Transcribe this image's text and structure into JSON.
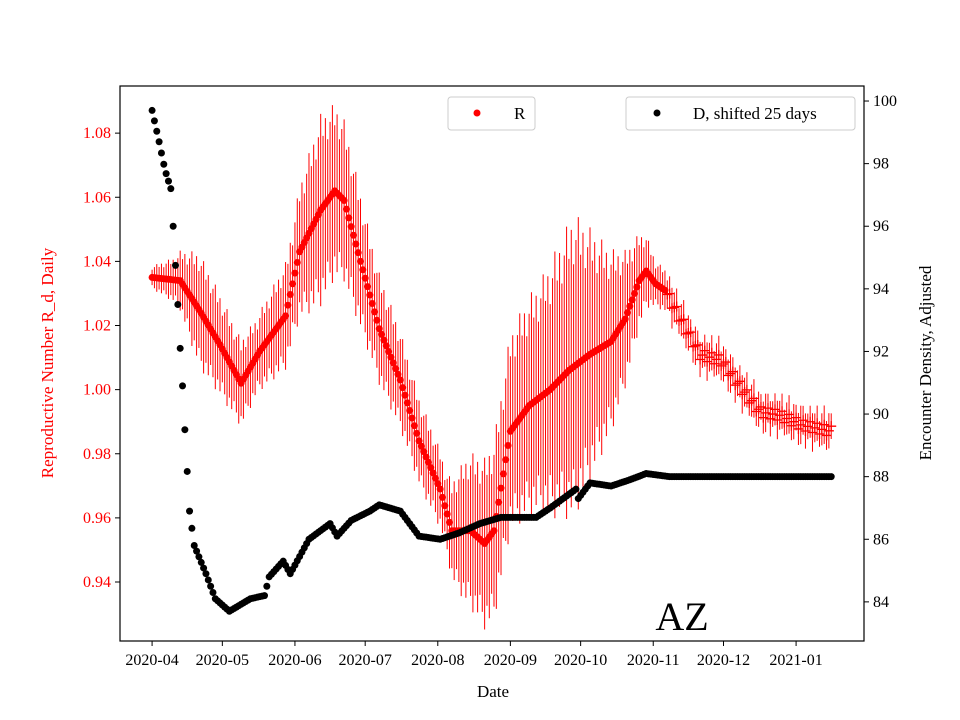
{
  "chart_data": {
    "type": "scatter",
    "title": "",
    "annotation": "AZ",
    "xlabel": "Date",
    "ylabel_left": "Reproductive Number R_d, Daily",
    "ylabel_right": "Encounter Density, Adjusted",
    "x_start_date": "2020-04-01",
    "xlim_days": [
      -13.7,
      304
    ],
    "ylim_left": [
      0.9216,
      1.0947
    ],
    "ylim_right": [
      82.75,
      100.48
    ],
    "x_ticks": [
      {
        "label": "2020-04",
        "day": 0
      },
      {
        "label": "2020-05",
        "day": 30
      },
      {
        "label": "2020-06",
        "day": 61
      },
      {
        "label": "2020-07",
        "day": 91
      },
      {
        "label": "2020-08",
        "day": 122
      },
      {
        "label": "2020-09",
        "day": 153
      },
      {
        "label": "2020-10",
        "day": 183
      },
      {
        "label": "2020-11",
        "day": 214
      },
      {
        "label": "2020-12",
        "day": 244
      },
      {
        "label": "2021-01",
        "day": 275
      }
    ],
    "y_ticks_left": [
      "0.94",
      "0.96",
      "0.98",
      "1.00",
      "1.02",
      "1.04",
      "1.06",
      "1.08"
    ],
    "y_ticks_right": [
      "84",
      "86",
      "88",
      "90",
      "92",
      "94",
      "96",
      "98",
      "100"
    ],
    "colors": {
      "R": "#ff0000",
      "D": "#000000"
    },
    "legend": [
      {
        "label": "R",
        "placement": "top-center"
      },
      {
        "label": "D, shifted 25 days",
        "placement": "top-right"
      }
    ],
    "series": [
      {
        "name": "R",
        "axis": "left",
        "marker_dot_until_day": 219,
        "marker_after": "plus",
        "days": [
          0,
          12,
          20,
          29,
          38,
          46,
          57,
          63,
          72,
          78,
          82,
          89,
          97,
          106,
          114,
          123,
          128,
          136,
          142,
          146,
          153,
          161,
          170,
          178,
          187,
          196,
          202,
          208,
          211,
          215,
          219,
          225,
          234,
          243,
          251,
          260,
          268,
          277,
          290
        ],
        "values": [
          1.035,
          1.034,
          1.025,
          1.014,
          1.002,
          1.012,
          1.023,
          1.043,
          1.056,
          1.062,
          1.059,
          1.04,
          1.019,
          1.003,
          0.984,
          0.969,
          0.956,
          0.956,
          0.952,
          0.956,
          0.987,
          0.995,
          1.0,
          1.006,
          1.011,
          1.015,
          1.022,
          1.034,
          1.037,
          1.033,
          1.031,
          1.023,
          1.011,
          1.009,
          1.001,
          0.993,
          0.992,
          0.989,
          0.987
        ],
        "err_days": [
          0,
          10,
          20,
          35,
          45,
          60,
          72,
          80,
          95,
          110,
          125,
          135,
          150,
          165,
          180,
          195,
          205,
          215,
          225,
          300
        ],
        "err_values": [
          0.003,
          0.006,
          0.015,
          0.012,
          0.01,
          0.015,
          0.025,
          0.022,
          0.015,
          0.012,
          0.01,
          0.02,
          0.025,
          0.03,
          0.04,
          0.025,
          0.015,
          0.006,
          0.005,
          0.005
        ]
      },
      {
        "name": "D, shifted 25 days",
        "axis": "right",
        "days": [
          0,
          3,
          5.5,
          8,
          9,
          11,
          12,
          13,
          14.5,
          16,
          18,
          23,
          27,
          33,
          42,
          48,
          50,
          56,
          59,
          67,
          76,
          79,
          85,
          93,
          97,
          106,
          114,
          123,
          131,
          140,
          149,
          164,
          170,
          181,
          182,
          187,
          196,
          204,
          211,
          221,
          234,
          290
        ],
        "values": [
          99.7,
          98.7,
          97.8,
          97.2,
          96.0,
          93.5,
          92.1,
          90.9,
          88.8,
          86.9,
          85.8,
          84.9,
          84.1,
          83.7,
          84.1,
          84.2,
          84.8,
          85.3,
          84.9,
          86.0,
          86.5,
          86.1,
          86.6,
          86.9,
          87.1,
          86.9,
          86.1,
          86.0,
          86.2,
          86.5,
          86.7,
          86.7,
          87.0,
          87.6,
          87.3,
          87.8,
          87.7,
          87.9,
          88.1,
          88.0,
          88.0,
          88.0
        ]
      }
    ]
  }
}
